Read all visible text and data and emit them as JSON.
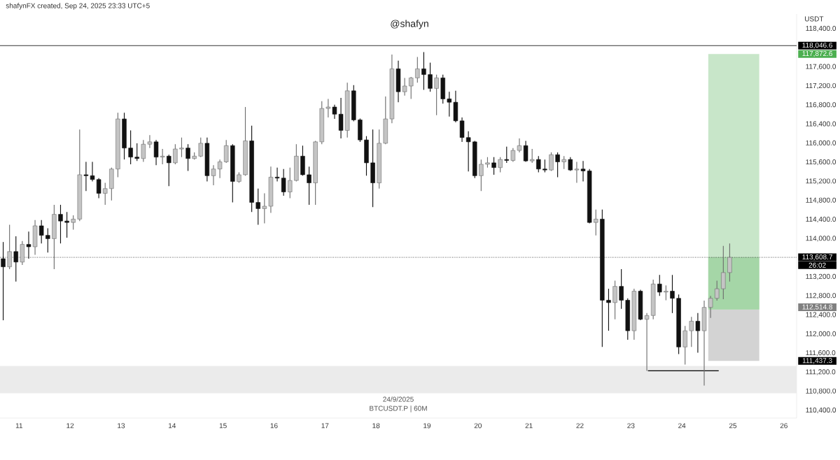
{
  "chart_data": {
    "type": "candlestick",
    "title": "@shafyn",
    "ylabel": "USDT",
    "annotations": [
      "shafynFX created, Sep 24, 2025 23:33 UTC+5",
      "24/9/2025",
      "BTCUSDT.P | 60M",
      "26:02",
      "117,872.6",
      "112,514.8",
      "111,437.3"
    ],
    "xlim": [
      "2025-09-10T15:00",
      "2025-09-26T06:00"
    ],
    "ylim": [
      110240,
      118710
    ],
    "xticks": [
      {
        "value": "2025-09-11",
        "label": "11"
      },
      {
        "value": "2025-09-12",
        "label": "12"
      },
      {
        "value": "2025-09-13",
        "label": "13"
      },
      {
        "value": "2025-09-14",
        "label": "14"
      },
      {
        "value": "2025-09-15",
        "label": "15"
      },
      {
        "value": "2025-09-16",
        "label": "16"
      },
      {
        "value": "2025-09-17",
        "label": "17"
      },
      {
        "value": "2025-09-18",
        "label": "18"
      },
      {
        "value": "2025-09-19",
        "label": "19"
      },
      {
        "value": "2025-09-20",
        "label": "20"
      },
      {
        "value": "2025-09-21",
        "label": "21"
      },
      {
        "value": "2025-09-22",
        "label": "22"
      },
      {
        "value": "2025-09-23",
        "label": "23"
      },
      {
        "value": "2025-09-24",
        "label": "24"
      },
      {
        "value": "2025-09-25",
        "label": "25"
      },
      {
        "value": "2025-09-26",
        "label": "26"
      }
    ],
    "yticks": [
      {
        "value": 110400,
        "label": "110,400.0"
      },
      {
        "value": 110800,
        "label": "110,800.0"
      },
      {
        "value": 111200,
        "label": "111,200.0"
      },
      {
        "value": 111600,
        "label": "111,600.0"
      },
      {
        "value": 112000,
        "label": "112,000.0"
      },
      {
        "value": 112400,
        "label": "112,400.0"
      },
      {
        "value": 112800,
        "label": "112,800.0"
      },
      {
        "value": 113200,
        "label": "113,200.0"
      },
      {
        "value": 114000,
        "label": "114,000.0"
      },
      {
        "value": 114400,
        "label": "114,400.0"
      },
      {
        "value": 114800,
        "label": "114,800.0"
      },
      {
        "value": 115200,
        "label": "115,200.0"
      },
      {
        "value": 115600,
        "label": "115,600.0"
      },
      {
        "value": 116000,
        "label": "116,000.0"
      },
      {
        "value": 116400,
        "label": "116,400.0"
      },
      {
        "value": 116800,
        "label": "116,800.0"
      },
      {
        "value": 117200,
        "label": "117,200.0"
      },
      {
        "value": 117600,
        "label": "117,600.0"
      },
      {
        "value": 118400,
        "label": "118,400.0"
      }
    ],
    "ref_lines": [
      {
        "axis": "y",
        "value": 118046.6,
        "label": "118,046.6",
        "color": "#000000",
        "line_style": "solid"
      },
      {
        "axis": "y",
        "value": 113608.7,
        "label": "113,608.7",
        "color": "#000000",
        "line_style": "dotted"
      }
    ],
    "bands": [
      {
        "axis": "y",
        "from": 110760,
        "to": 111330,
        "color": "#ebebeb"
      }
    ],
    "series": [
      {
        "type": "bar",
        "x": [
          "2025-09-25T00:25"
        ],
        "base": [
          112514.8
        ],
        "values": [
          5357.8
        ],
        "color": "#c8e6c9"
      },
      {
        "type": "bar",
        "x": [
          "2025-09-25T00:25"
        ],
        "base": [
          111437.3
        ],
        "values": [
          1077.5
        ],
        "color": "#d3d3d3"
      },
      {
        "type": "bar",
        "x": [
          "2025-09-25T00:25"
        ],
        "base": [
          112514.8
        ],
        "values": [
          1093.9
        ],
        "color": "#a5d6a7"
      },
      {
        "type": "line",
        "x": [
          "2025-09-23T08:00",
          "2025-09-24T17:20"
        ],
        "values": [
          111230,
          111230
        ],
        "color": "#000000"
      }
    ],
    "x": [
      "2025-09-10T16:30",
      "2025-09-10T19:30",
      "2025-09-10T22:30",
      "2025-09-11T01:30",
      "2025-09-11T04:30",
      "2025-09-11T07:30",
      "2025-09-11T10:30",
      "2025-09-11T13:30",
      "2025-09-11T16:30",
      "2025-09-11T19:30",
      "2025-09-11T22:30",
      "2025-09-12T01:30",
      "2025-09-12T04:30",
      "2025-09-12T07:30",
      "2025-09-12T10:30",
      "2025-09-12T13:30",
      "2025-09-12T16:30",
      "2025-09-12T19:30",
      "2025-09-12T22:30",
      "2025-09-13T01:30",
      "2025-09-13T04:30",
      "2025-09-13T07:30",
      "2025-09-13T10:30",
      "2025-09-13T13:30",
      "2025-09-13T16:30",
      "2025-09-13T19:30",
      "2025-09-13T22:30",
      "2025-09-14T01:30",
      "2025-09-14T04:30",
      "2025-09-14T07:30",
      "2025-09-14T10:30",
      "2025-09-14T13:30",
      "2025-09-14T16:30",
      "2025-09-14T19:30",
      "2025-09-14T22:30",
      "2025-09-15T01:30",
      "2025-09-15T04:30",
      "2025-09-15T07:30",
      "2025-09-15T10:30",
      "2025-09-15T13:30",
      "2025-09-15T16:30",
      "2025-09-15T19:30",
      "2025-09-15T22:30",
      "2025-09-16T01:30",
      "2025-09-16T04:30",
      "2025-09-16T07:30",
      "2025-09-16T10:30",
      "2025-09-16T13:30",
      "2025-09-16T16:30",
      "2025-09-16T19:30",
      "2025-09-16T22:30",
      "2025-09-17T01:30",
      "2025-09-17T04:30",
      "2025-09-17T07:30",
      "2025-09-17T10:30",
      "2025-09-17T13:30",
      "2025-09-17T16:30",
      "2025-09-17T19:30",
      "2025-09-17T22:30",
      "2025-09-18T01:30",
      "2025-09-18T04:30",
      "2025-09-18T07:30",
      "2025-09-18T10:30",
      "2025-09-18T13:30",
      "2025-09-18T16:30",
      "2025-09-18T19:30",
      "2025-09-18T22:30",
      "2025-09-19T01:30",
      "2025-09-19T04:30",
      "2025-09-19T07:30",
      "2025-09-19T10:30",
      "2025-09-19T13:30",
      "2025-09-19T16:30",
      "2025-09-19T19:30",
      "2025-09-19T22:30",
      "2025-09-20T01:30",
      "2025-09-20T04:30",
      "2025-09-20T07:30",
      "2025-09-20T10:30",
      "2025-09-20T13:30",
      "2025-09-20T16:30",
      "2025-09-20T19:30",
      "2025-09-20T22:30",
      "2025-09-21T01:30",
      "2025-09-21T04:30",
      "2025-09-21T07:30",
      "2025-09-21T10:30",
      "2025-09-21T13:30",
      "2025-09-21T16:30",
      "2025-09-21T19:30",
      "2025-09-21T22:30",
      "2025-09-22T01:30",
      "2025-09-22T04:30",
      "2025-09-22T07:30",
      "2025-09-22T10:30",
      "2025-09-22T13:30",
      "2025-09-22T16:30",
      "2025-09-22T19:30",
      "2025-09-22T22:30",
      "2025-09-23T01:30",
      "2025-09-23T04:30",
      "2025-09-23T07:30",
      "2025-09-23T10:30",
      "2025-09-23T13:30",
      "2025-09-23T16:30",
      "2025-09-23T19:30",
      "2025-09-23T22:30",
      "2025-09-24T01:30",
      "2025-09-24T04:30",
      "2025-09-24T07:30",
      "2025-09-24T10:30",
      "2025-09-24T13:30",
      "2025-09-24T16:30",
      "2025-09-24T19:30",
      "2025-09-24T22:30"
    ],
    "ohlc": [
      [
        113580,
        113930,
        112290,
        113410
      ],
      [
        113410,
        114290,
        113360,
        113730
      ],
      [
        113730,
        114050,
        113100,
        113510
      ],
      [
        113510,
        113950,
        113450,
        113880
      ],
      [
        113880,
        114150,
        113580,
        113830
      ],
      [
        113830,
        114390,
        113660,
        114270
      ],
      [
        114270,
        114390,
        113900,
        114070
      ],
      [
        114070,
        114220,
        113710,
        114000
      ],
      [
        114000,
        114710,
        113360,
        114510
      ],
      [
        114510,
        114710,
        113900,
        114370
      ],
      [
        114370,
        114560,
        114020,
        114340
      ],
      [
        114340,
        114490,
        114190,
        114410
      ],
      [
        114410,
        116290,
        114370,
        115340
      ],
      [
        115340,
        115610,
        115000,
        115320
      ],
      [
        115320,
        115610,
        115200,
        115240
      ],
      [
        115240,
        115270,
        114850,
        114950
      ],
      [
        114950,
        115170,
        114710,
        115050
      ],
      [
        115050,
        115490,
        114800,
        115460
      ],
      [
        115460,
        116640,
        115290,
        116510
      ],
      [
        116510,
        116640,
        115660,
        115900
      ],
      [
        115900,
        116270,
        115560,
        115710
      ],
      [
        115710,
        116000,
        115630,
        115680
      ],
      [
        115680,
        116070,
        115610,
        115980
      ],
      [
        115980,
        116170,
        115900,
        116030
      ],
      [
        116030,
        116070,
        115540,
        115710
      ],
      [
        115710,
        115880,
        115560,
        115730
      ],
      [
        115730,
        115760,
        115100,
        115590
      ],
      [
        115590,
        115980,
        115560,
        115880
      ],
      [
        115880,
        116120,
        115710,
        115900
      ],
      [
        115900,
        115980,
        115420,
        115680
      ],
      [
        115680,
        115810,
        115660,
        115730
      ],
      [
        115730,
        116120,
        115710,
        116000
      ],
      [
        116000,
        116120,
        115200,
        115320
      ],
      [
        115320,
        115540,
        115120,
        115460
      ],
      [
        115460,
        115660,
        115270,
        115610
      ],
      [
        115610,
        116070,
        115590,
        115950
      ],
      [
        115950,
        115980,
        114760,
        115200
      ],
      [
        115200,
        115390,
        115170,
        115340
      ],
      [
        115340,
        116760,
        115320,
        116050
      ],
      [
        116050,
        116370,
        114560,
        114760
      ],
      [
        114760,
        115050,
        114290,
        114630
      ],
      [
        114630,
        114950,
        114320,
        114680
      ],
      [
        114680,
        115510,
        114540,
        115290
      ],
      [
        115290,
        115490,
        115200,
        115270
      ],
      [
        115270,
        115460,
        114900,
        114980
      ],
      [
        114980,
        115490,
        114850,
        115220
      ],
      [
        115220,
        115980,
        115200,
        115730
      ],
      [
        115730,
        115950,
        115320,
        115340
      ],
      [
        115340,
        115510,
        114710,
        115170
      ],
      [
        115170,
        116050,
        114710,
        116030
      ],
      [
        116030,
        116880,
        115980,
        116730
      ],
      [
        116730,
        116930,
        116540,
        116760
      ],
      [
        116760,
        116810,
        116510,
        116610
      ],
      [
        116610,
        116950,
        116100,
        116270
      ],
      [
        116270,
        117270,
        116120,
        117100
      ],
      [
        117100,
        117220,
        116460,
        116490
      ],
      [
        116490,
        116520,
        116030,
        116070
      ],
      [
        116070,
        116150,
        115320,
        115590
      ],
      [
        115590,
        116290,
        114660,
        115170
      ],
      [
        115170,
        116290,
        115050,
        116000
      ],
      [
        116000,
        116980,
        115980,
        116510
      ],
      [
        116510,
        117860,
        116420,
        117560
      ],
      [
        117560,
        117730,
        116860,
        117080
      ],
      [
        117080,
        117370,
        117000,
        117200
      ],
      [
        117200,
        117390,
        116930,
        117370
      ],
      [
        117370,
        117810,
        117270,
        117560
      ],
      [
        117560,
        117910,
        117120,
        117440
      ],
      [
        117440,
        117690,
        117080,
        117150
      ],
      [
        117150,
        117440,
        116590,
        117370
      ],
      [
        117370,
        117440,
        116830,
        116930
      ],
      [
        116930,
        117080,
        116560,
        116860
      ],
      [
        116860,
        117100,
        116440,
        116470
      ],
      [
        116470,
        116540,
        116030,
        116120
      ],
      [
        116120,
        116250,
        115410,
        116030
      ],
      [
        116030,
        116050,
        115270,
        115320
      ],
      [
        115320,
        115660,
        115000,
        115560
      ],
      [
        115560,
        115710,
        115490,
        115590
      ],
      [
        115590,
        115710,
        115340,
        115490
      ],
      [
        115490,
        115710,
        115390,
        115660
      ],
      [
        115660,
        115930,
        115590,
        115640
      ],
      [
        115640,
        115900,
        115610,
        115850
      ],
      [
        115850,
        116100,
        115810,
        115950
      ],
      [
        115950,
        116050,
        115610,
        115630
      ],
      [
        115630,
        115880,
        115590,
        115660
      ],
      [
        115660,
        115730,
        115390,
        115460
      ],
      [
        115460,
        115660,
        115390,
        115440
      ],
      [
        115440,
        115810,
        115420,
        115760
      ],
      [
        115760,
        115810,
        115290,
        115610
      ],
      [
        115610,
        115730,
        115460,
        115660
      ],
      [
        115660,
        115710,
        115420,
        115440
      ],
      [
        115440,
        115610,
        115170,
        115460
      ],
      [
        115460,
        115630,
        115200,
        115420
      ],
      [
        115420,
        115460,
        114320,
        114340
      ],
      [
        114340,
        114610,
        114070,
        114410
      ],
      [
        114410,
        114610,
        111730,
        112710
      ],
      [
        112710,
        112950,
        112070,
        112660
      ],
      [
        112660,
        113120,
        112310,
        113000
      ],
      [
        113000,
        113360,
        112530,
        112710
      ],
      [
        112710,
        112750,
        111880,
        112070
      ],
      [
        112070,
        112950,
        111880,
        112900
      ],
      [
        112900,
        112930,
        112290,
        112310
      ],
      [
        112310,
        112440,
        111230,
        112390
      ],
      [
        112390,
        113140,
        112310,
        113050
      ],
      [
        113050,
        113240,
        112800,
        112880
      ],
      [
        112880,
        113020,
        112710,
        112900
      ],
      [
        112900,
        113240,
        112440,
        112750
      ],
      [
        112750,
        112830,
        111580,
        111730
      ],
      [
        111730,
        112170,
        111360,
        112070
      ],
      [
        112070,
        112360,
        111730,
        112270
      ],
      [
        112270,
        112440,
        111610,
        112070
      ],
      [
        112070,
        112700,
        110920,
        112560
      ],
      [
        112560,
        112800,
        112340,
        112750
      ],
      [
        112750,
        113120,
        112700,
        112950
      ],
      [
        112950,
        113850,
        112730,
        113290
      ],
      [
        113290,
        113900,
        113100,
        113608.7
      ]
    ]
  }
}
